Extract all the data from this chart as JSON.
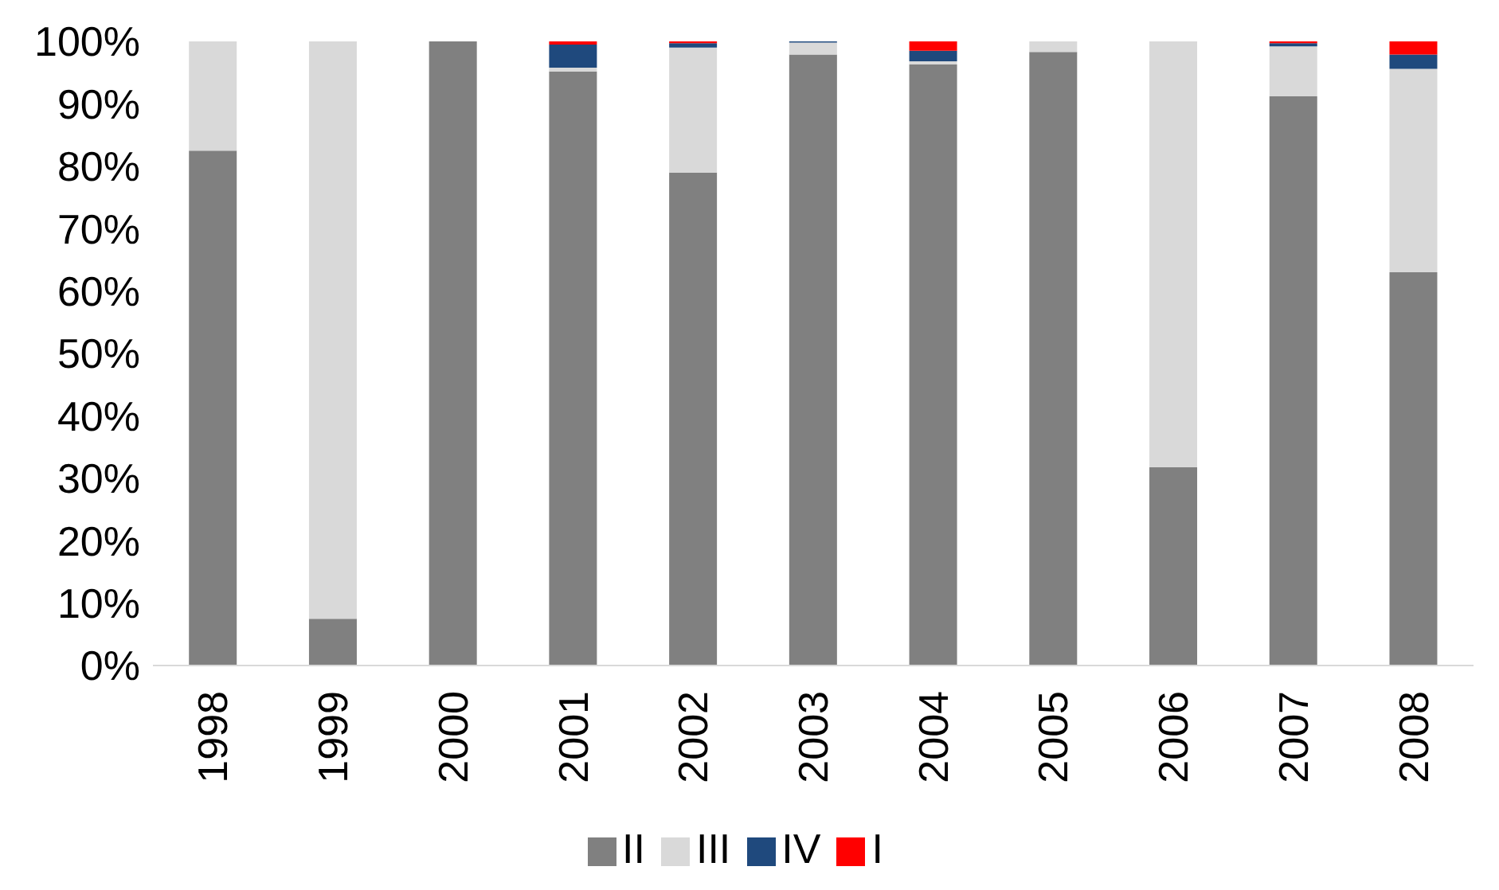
{
  "chart_data": {
    "type": "bar",
    "stacked": true,
    "categories": [
      "1998",
      "1999",
      "2000",
      "2001",
      "2002",
      "2003",
      "2004",
      "2005",
      "2006",
      "2007",
      "2008"
    ],
    "series": [
      {
        "name": "II",
        "color": "#808080",
        "values": [
          82.5,
          7.5,
          100,
          95.2,
          79,
          97.9,
          96.3,
          98.3,
          31.8,
          91.2,
          63
        ]
      },
      {
        "name": "III",
        "color": "#d9d9d9",
        "values": [
          17.5,
          92.5,
          0,
          0.6,
          20,
          1.9,
          0.5,
          1.7,
          68.2,
          8,
          32.6
        ]
      },
      {
        "name": "IV",
        "color": "#1f497d",
        "values": [
          0,
          0,
          0,
          3.7,
          0.7,
          0.2,
          1.7,
          0,
          0,
          0.5,
          2.3
        ]
      },
      {
        "name": "I",
        "color": "#ff0000",
        "values": [
          0,
          0,
          0,
          0.5,
          0.3,
          0,
          1.5,
          0,
          0,
          0.3,
          2.1
        ]
      }
    ],
    "ylim": [
      0,
      100
    ],
    "yticks": [
      {
        "value": 0,
        "label": "0%"
      },
      {
        "value": 10,
        "label": "10%"
      },
      {
        "value": 20,
        "label": "20%"
      },
      {
        "value": 30,
        "label": "30%"
      },
      {
        "value": 40,
        "label": "40%"
      },
      {
        "value": 50,
        "label": "50%"
      },
      {
        "value": 60,
        "label": "60%"
      },
      {
        "value": 70,
        "label": "70%"
      },
      {
        "value": 80,
        "label": "80%"
      },
      {
        "value": 90,
        "label": "90%"
      },
      {
        "value": 100,
        "label": "100%"
      }
    ],
    "grid": false,
    "legend": "bottom"
  }
}
